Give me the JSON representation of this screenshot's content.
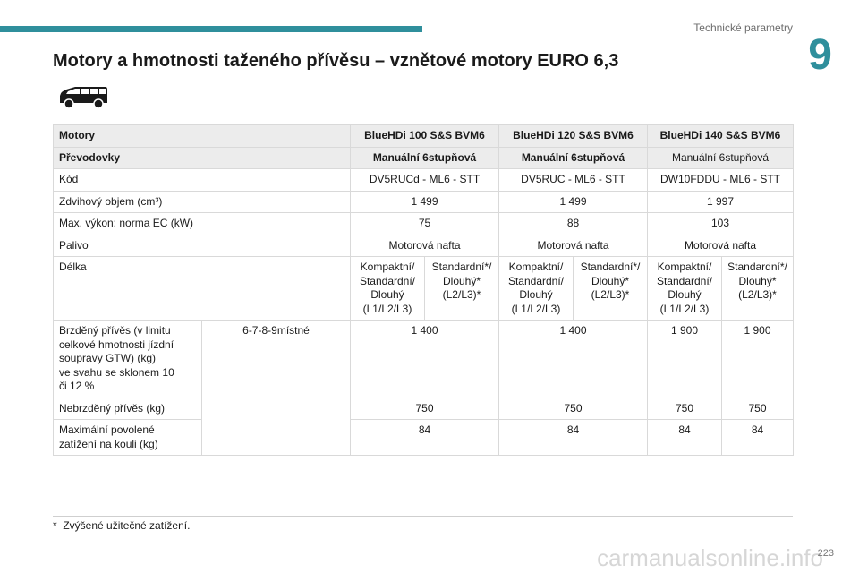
{
  "header": {
    "section_label": "Technické parametry",
    "chapter_number": "9"
  },
  "page_title": "Motory a hmotnosti taženého přívěsu – vznětové motory EURO 6,3",
  "icon": "van-icon",
  "table": {
    "headers": [
      "Motory",
      "BlueHDi 100 S&S BVM6",
      "BlueHDi 120 S&S BVM6",
      "BlueHDi 140 S&S BVM6"
    ],
    "gearbox": [
      "Převodovky",
      "Manuální 6stupňová",
      "Manuální 6stupňová",
      "Manuální 6stupňová"
    ],
    "code": [
      "Kód",
      "DV5RUCd - ML6 - STT",
      "DV5RUC - ML6 - STT",
      "DW10FDDU - ML6 - STT"
    ],
    "displacement": [
      "Zdvihový objem (cm³)",
      "1 499",
      "1 499",
      "1 997"
    ],
    "power": [
      "Max. výkon: norma EC (kW)",
      "75",
      "88",
      "103"
    ],
    "fuel": [
      "Palivo",
      "Motorová nafta",
      "Motorová nafta",
      "Motorová nafta"
    ],
    "length": {
      "label": "Délka",
      "variant_a": [
        "Kompaktní/",
        "Standardní/",
        "Dlouhý",
        "(L1/L2/L3)"
      ],
      "variant_b": [
        "Standardní*/",
        "Dlouhý*",
        "(L2/L3)*"
      ]
    },
    "braked": {
      "label": [
        "Brzděný přívěs (v limitu",
        "celkové hmotnosti jízdní",
        "soupravy GTW) (kg)",
        "ve svahu se sklonem 10",
        "či 12 %"
      ],
      "seats": "6-7-8-9místné",
      "values": [
        "1 400",
        "1 400",
        "1 900",
        "1 900"
      ]
    },
    "unbraked": {
      "label": "Nebrzděný přívěs (kg)",
      "values": [
        "750",
        "750",
        "750",
        "750"
      ]
    },
    "hitch": {
      "label": [
        "Maximální povolené",
        "zatížení na kouli (kg)"
      ],
      "values": [
        "84",
        "84",
        "84",
        "84"
      ]
    }
  },
  "footnote": {
    "mark": "*",
    "text": "Zvýšené užitečné zatížení."
  },
  "page_number": "223",
  "watermark": "carmanualsonline.info",
  "colors": {
    "accent": "#2f8f9c",
    "row_shade": "#ececec",
    "border": "#d9d9d9"
  }
}
